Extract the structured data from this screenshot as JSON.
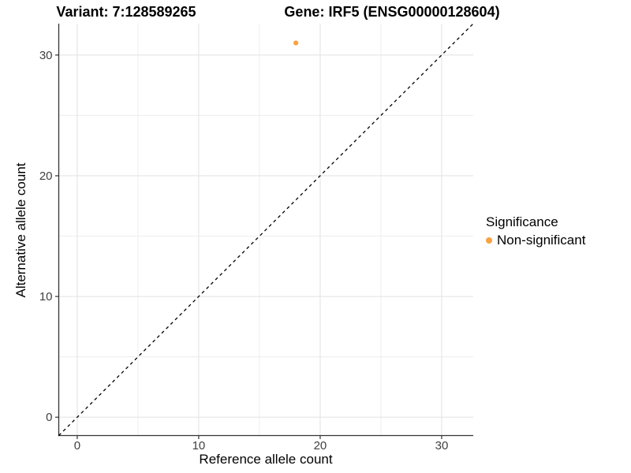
{
  "header": {
    "variant_title": "Variant: 7:128589265",
    "gene_title": "Gene: IRF5 (ENSG00000128604)"
  },
  "legend": {
    "title": "Significance",
    "items": [
      {
        "label": "Non-significant",
        "color": "#F9A242"
      }
    ]
  },
  "chart_data": {
    "type": "scatter",
    "points": [
      {
        "x": 18,
        "y": 31,
        "series": "Non-significant",
        "color": "#F9A242"
      }
    ],
    "x": {
      "label": "Reference allele count",
      "major_ticks": [
        0,
        10,
        20,
        30
      ],
      "minor_ticks": [
        5,
        15,
        25
      ],
      "range": [
        -1.52,
        32.6
      ]
    },
    "y": {
      "label": "Alternative allele count",
      "major_ticks": [
        0,
        10,
        20,
        30
      ],
      "minor_ticks": [
        5,
        15,
        25
      ],
      "range": [
        -1.52,
        32.6
      ]
    },
    "identity_line": {
      "slope": 1,
      "intercept": 0,
      "style": "dashed",
      "color": "#000000"
    },
    "grid": {
      "major_color": "#E4E4E4",
      "minor_color": "#ECECEC",
      "background": "#FFFFFF"
    },
    "axis_color": "#333333",
    "tick_label_color": "#404040",
    "point_radius": 3.1,
    "legend_position": "right"
  }
}
